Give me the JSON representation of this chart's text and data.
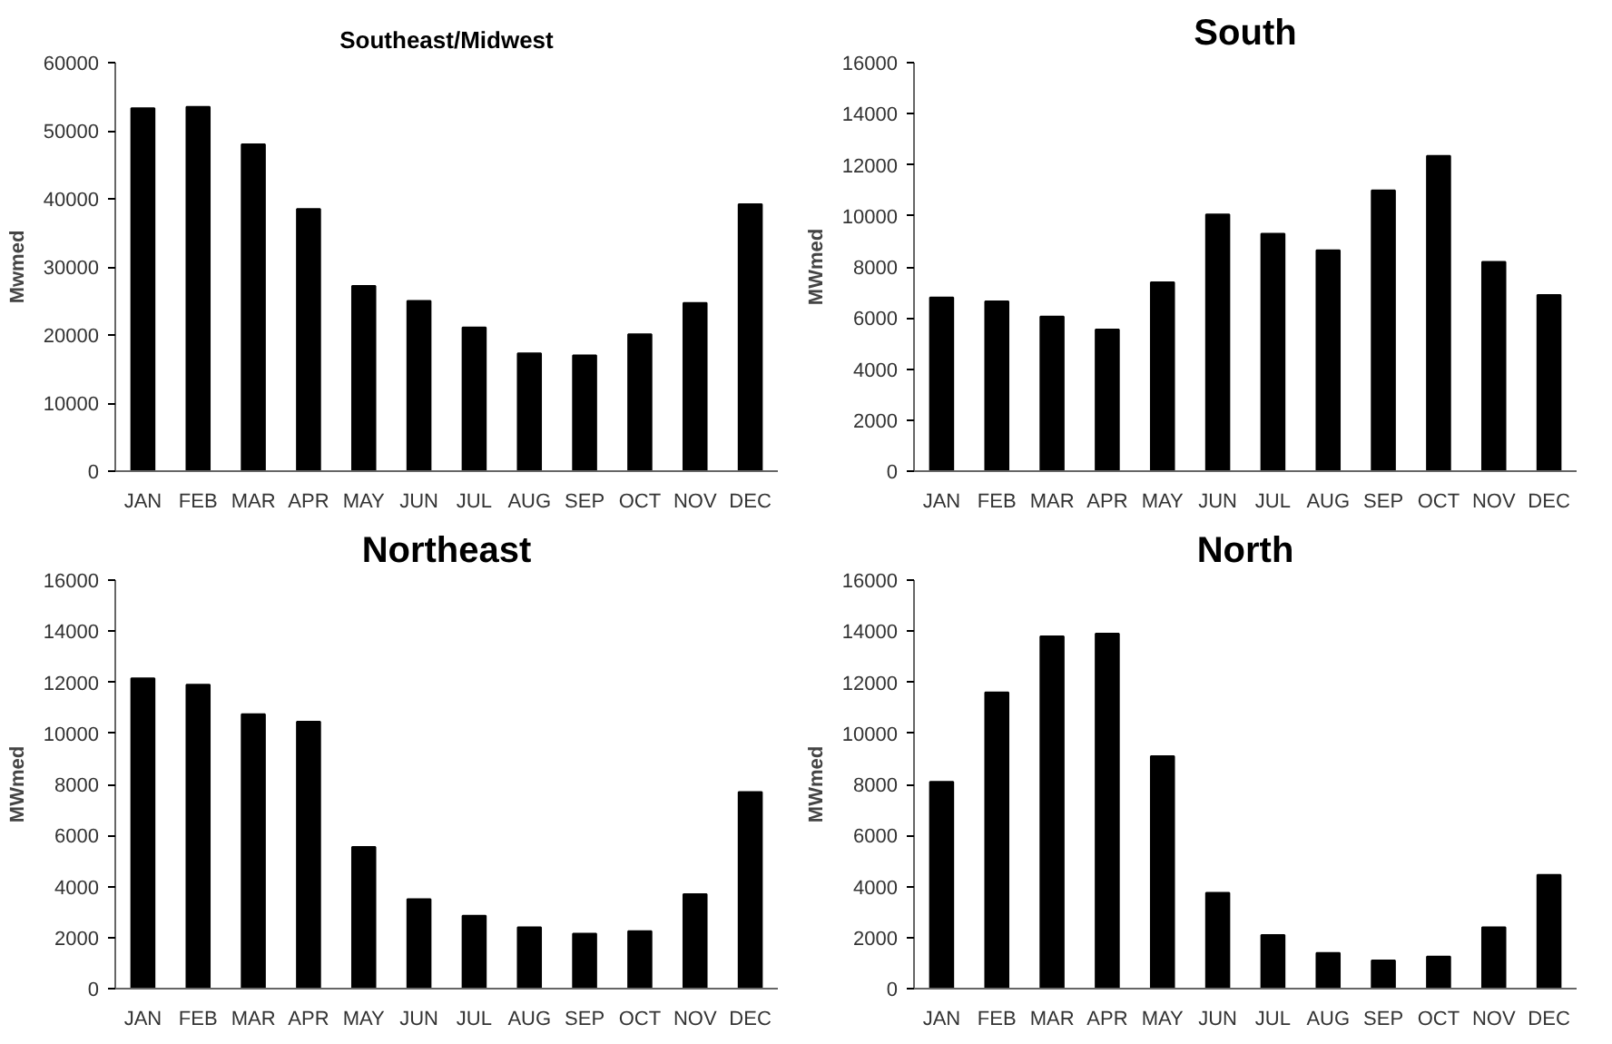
{
  "chart_data": [
    {
      "type": "bar",
      "title": "Southeast/Midwest",
      "ylabel": "Mwmed",
      "categories": [
        "JAN",
        "FEB",
        "MAR",
        "APR",
        "MAY",
        "JUN",
        "JUL",
        "AUG",
        "SEP",
        "OCT",
        "NOV",
        "DEC"
      ],
      "values": [
        53300,
        53500,
        48000,
        38500,
        27200,
        25000,
        21100,
        17300,
        17000,
        20100,
        24700,
        39200
      ],
      "color": "#000000",
      "ylim": [
        0,
        60000
      ],
      "yticks": [
        0,
        10000,
        20000,
        30000,
        40000,
        50000,
        60000
      ]
    },
    {
      "type": "bar",
      "title": "South",
      "ylabel": "MWmed",
      "categories": [
        "JAN",
        "FEB",
        "MAR",
        "APR",
        "MAY",
        "JUN",
        "JUL",
        "AUG",
        "SEP",
        "OCT",
        "NOV",
        "DEC"
      ],
      "values": [
        6800,
        6650,
        6050,
        5550,
        7400,
        10050,
        9300,
        8650,
        11000,
        12350,
        8200,
        6900
      ],
      "color": "#000000",
      "ylim": [
        0,
        16000
      ],
      "yticks": [
        0,
        2000,
        4000,
        6000,
        8000,
        10000,
        12000,
        14000,
        16000
      ]
    },
    {
      "type": "bar",
      "title": "Northeast",
      "ylabel": "MWmed",
      "categories": [
        "JAN",
        "FEB",
        "MAR",
        "APR",
        "MAY",
        "JUN",
        "JUL",
        "AUG",
        "SEP",
        "OCT",
        "NOV",
        "DEC"
      ],
      "values": [
        12150,
        11900,
        10750,
        10450,
        5550,
        3500,
        2850,
        2400,
        2150,
        2250,
        3700,
        7700
      ],
      "color": "#000000",
      "ylim": [
        0,
        16000
      ],
      "yticks": [
        0,
        2000,
        4000,
        6000,
        8000,
        10000,
        12000,
        14000,
        16000
      ]
    },
    {
      "type": "bar",
      "title": "North",
      "ylabel": "MWmed",
      "categories": [
        "JAN",
        "FEB",
        "MAR",
        "APR",
        "MAY",
        "JUN",
        "JUL",
        "AUG",
        "SEP",
        "OCT",
        "NOV",
        "DEC"
      ],
      "values": [
        8100,
        11600,
        13800,
        13900,
        9100,
        3750,
        2100,
        1400,
        1100,
        1250,
        2400,
        4450
      ],
      "color": "#000000",
      "ylim": [
        0,
        16000
      ],
      "yticks": [
        0,
        2000,
        4000,
        6000,
        8000,
        10000,
        12000,
        14000,
        16000
      ]
    }
  ]
}
